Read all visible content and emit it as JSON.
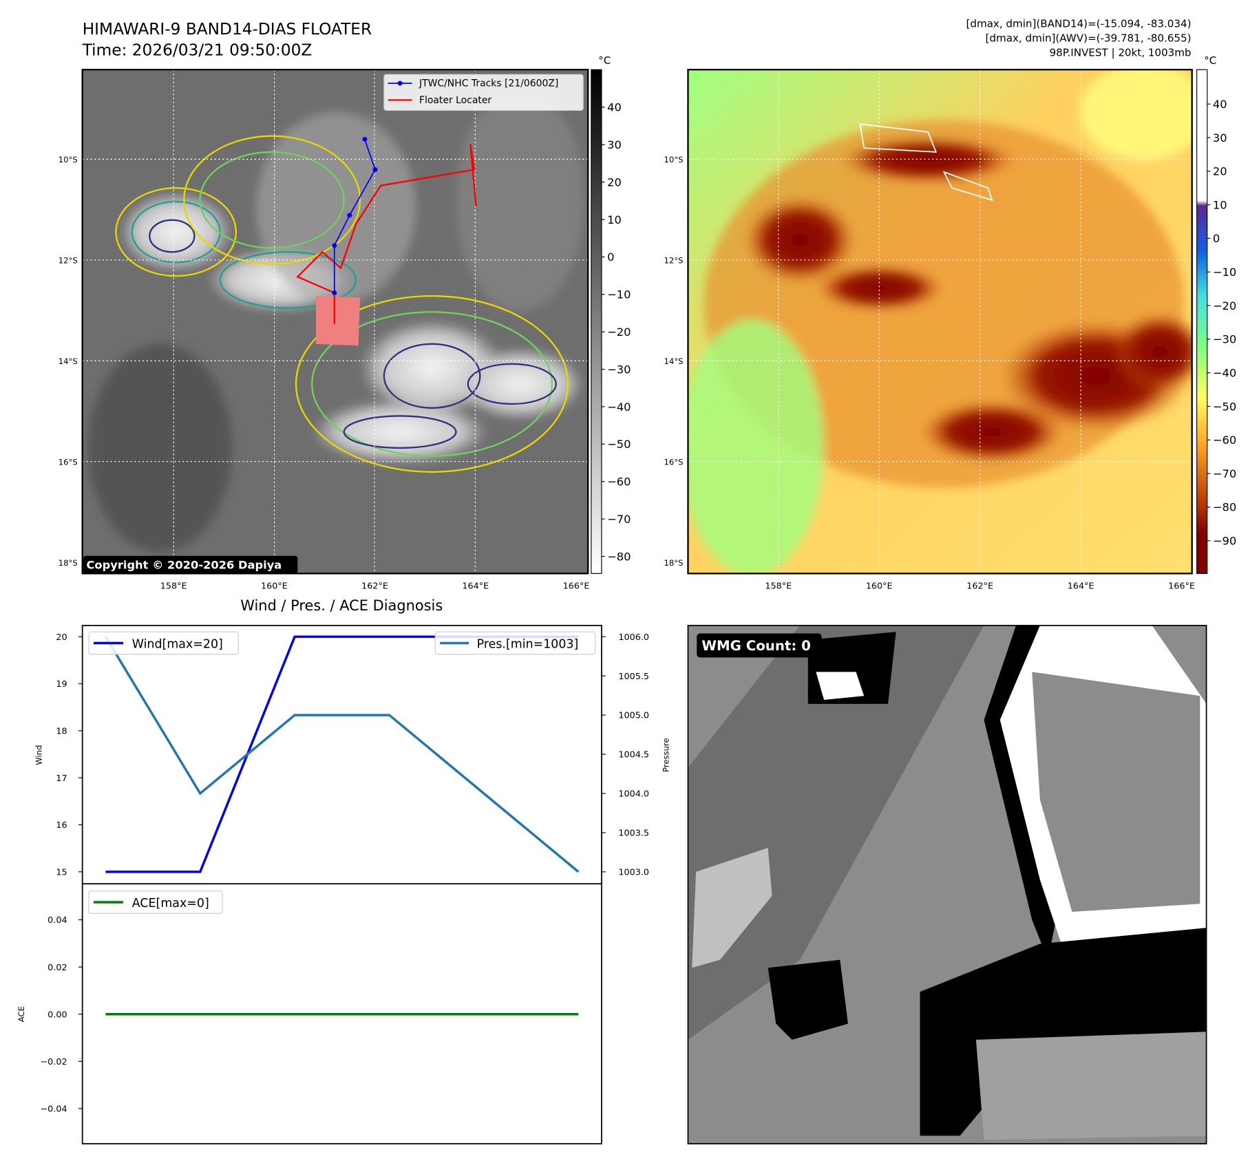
{
  "header": {
    "title": "HIMAWARI-9 BAND14-DIAS FLOATER",
    "time": "Time: 2026/03/21 09:50:00Z",
    "stats_band14": "[dmax, dmin](BAND14)=(-15.094, -83.034)",
    "stats_awv": "[dmax, dmin](AWV)=(-39.781, -80.655)",
    "storm_info": "98P.INVEST | 20kt, 1003mb"
  },
  "maps": {
    "lat_labels": [
      "10°S",
      "12°S",
      "14°S",
      "16°S",
      "18°S"
    ],
    "lon_labels": [
      "158°E",
      "160°E",
      "162°E",
      "164°E",
      "166°E"
    ],
    "unit": "°C",
    "copyright": "Copyright © 2020-2026 Dapiya",
    "legend_tracks": "JTWC/NHC Tracks [21/0600Z]",
    "legend_floater": "Floater Locater",
    "colorbar1_ticks": [
      "40",
      "30",
      "20",
      "10",
      "0",
      "−10",
      "−20",
      "−30",
      "−40",
      "−50",
      "−60",
      "−70",
      "−80"
    ],
    "colorbar2_ticks": [
      "40",
      "30",
      "20",
      "10",
      "0",
      "−10",
      "−20",
      "−30",
      "−40",
      "−50",
      "−60",
      "−70",
      "−80",
      "−90"
    ],
    "track_color": "#0000ff",
    "floater_color": "#ff0000"
  },
  "wmg": {
    "label": "WMG Count: 0"
  },
  "chart_data": [
    {
      "type": "line",
      "title": "Wind / Pres. / ACE Diagnosis",
      "ylabel": "Wind",
      "y2label": "Pressure",
      "x": [
        0,
        1,
        2,
        3,
        4,
        5
      ],
      "ylim": [
        15,
        20
      ],
      "y2lim": [
        1003,
        1006
      ],
      "yticks": [
        "20",
        "19",
        "18",
        "17",
        "16",
        "15"
      ],
      "y2ticks": [
        "1006.0",
        "1005.5",
        "1005.0",
        "1004.5",
        "1004.0",
        "1003.5",
        "1003.0"
      ],
      "series": [
        {
          "name": "Wind[max=20]",
          "axis": "left",
          "color": "#0000ff",
          "values": [
            15,
            15,
            20,
            20,
            20,
            20
          ]
        },
        {
          "name": "Pres.[min=1003]",
          "axis": "right",
          "color": "#1f77b4",
          "values": [
            1006,
            1004,
            1005,
            1005,
            1004,
            1003
          ]
        }
      ]
    },
    {
      "type": "line",
      "ylabel": "ACE",
      "ylim": [
        -0.05,
        0.05
      ],
      "yticks": [
        "0.04",
        "0.02",
        "0.00",
        "−0.02",
        "−0.04"
      ],
      "x": [
        0,
        1,
        2,
        3,
        4,
        5
      ],
      "series": [
        {
          "name": "ACE[max=0]",
          "color": "#008000",
          "values": [
            0,
            0,
            0,
            0,
            0,
            0
          ]
        }
      ]
    }
  ]
}
